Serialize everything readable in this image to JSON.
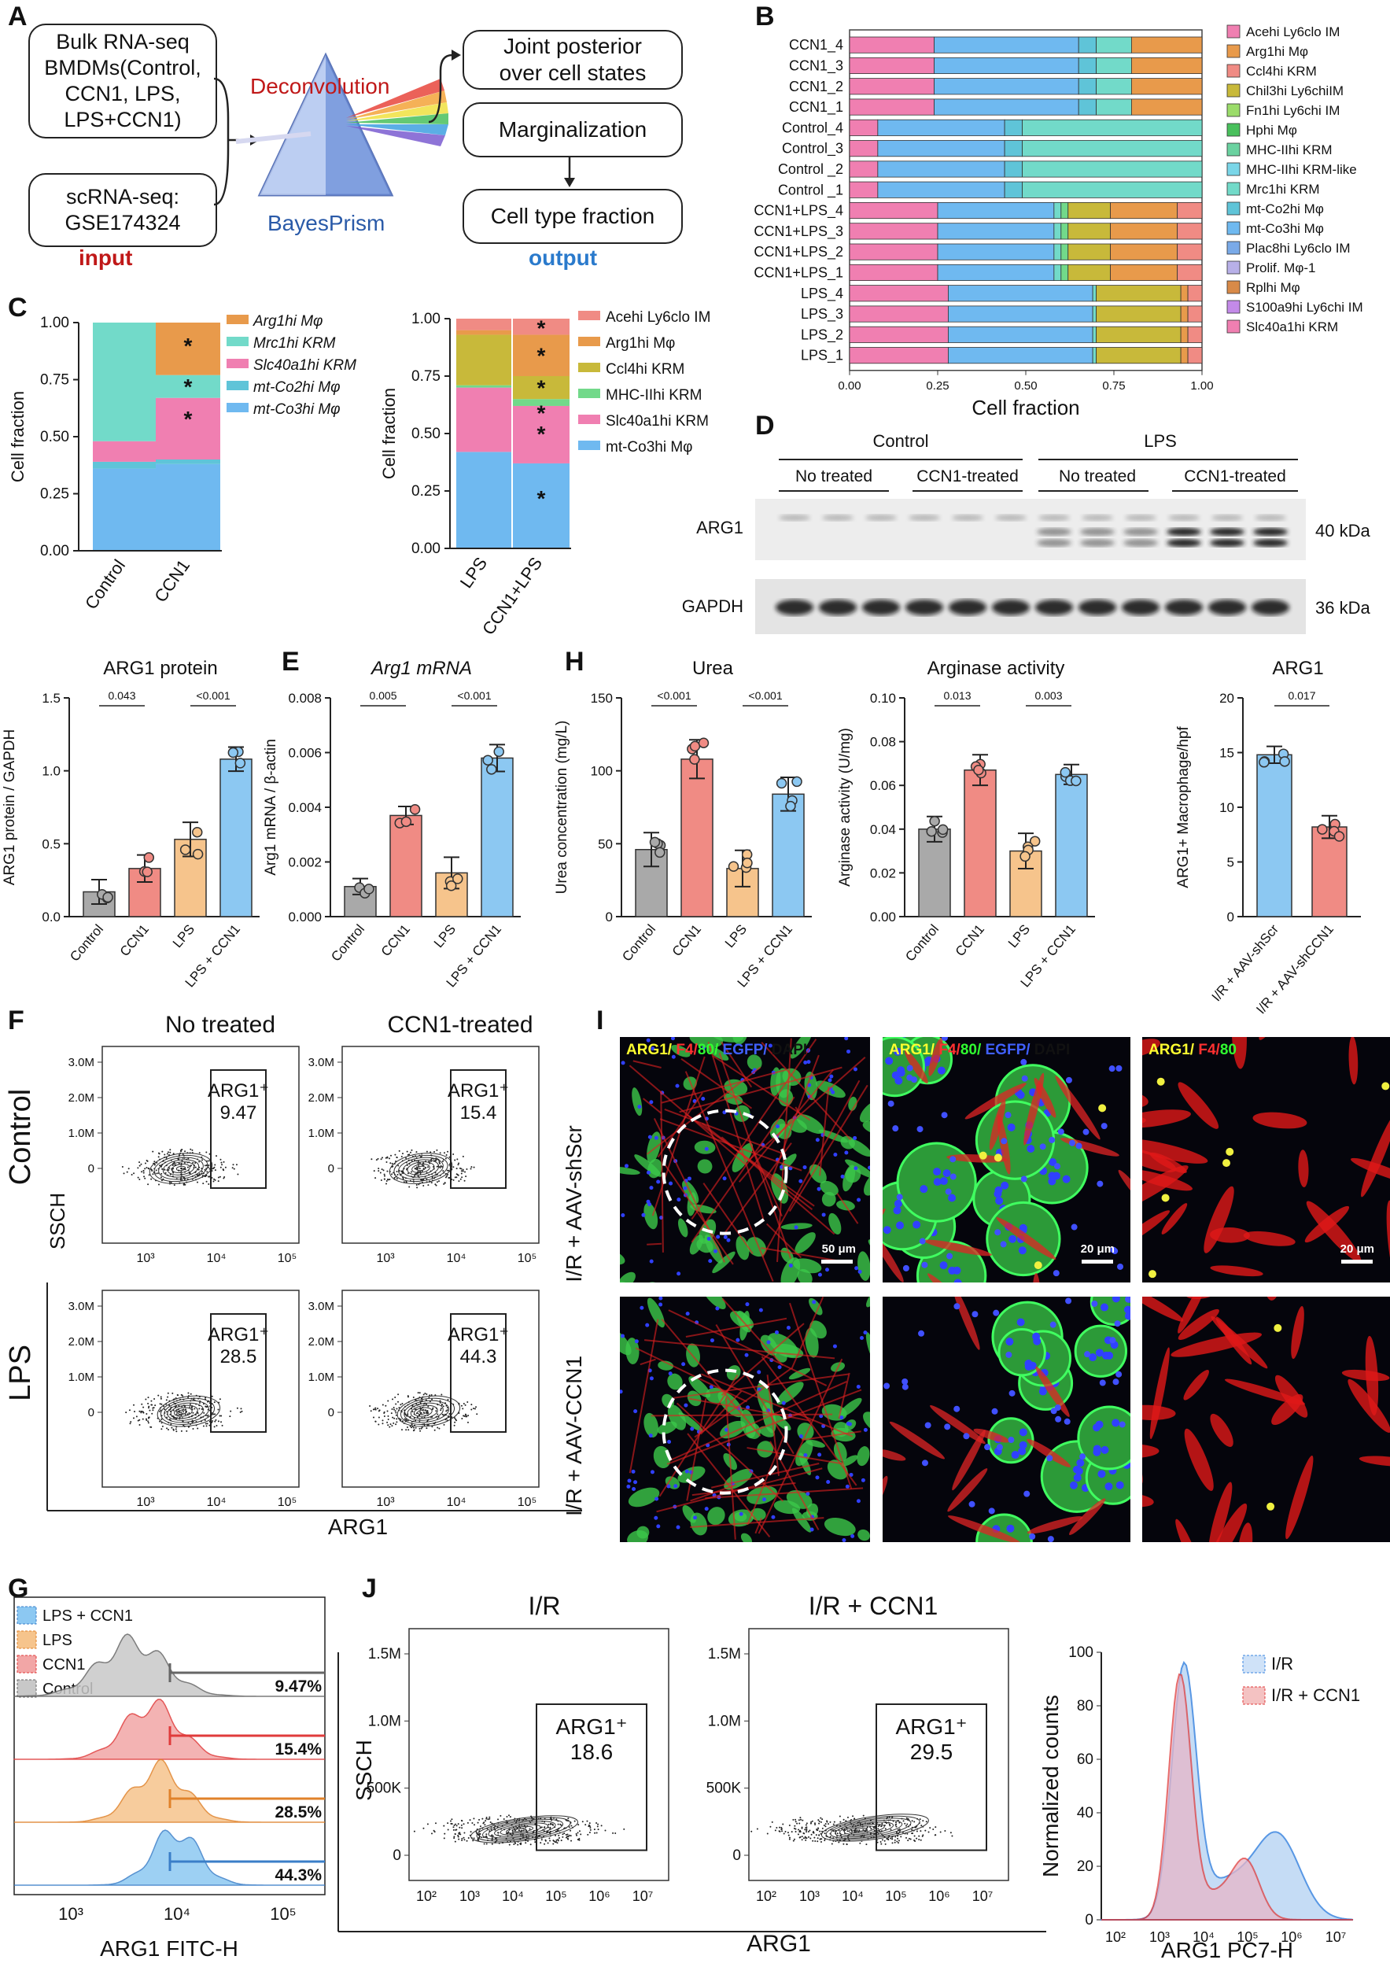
{
  "panels": {
    "A": "A",
    "B": "B",
    "C": "C",
    "D": "D",
    "E": "E",
    "F": "F",
    "G": "G",
    "H": "H",
    "I": "I",
    "J": "J"
  },
  "colors": {
    "red": "#f08b84",
    "pink": "#f07fb1",
    "orange": "#e89a4b",
    "blue": "#6fb9f0",
    "teal": "#72dac9",
    "green": "#72d98a",
    "olive": "#c8b93a",
    "grey": "#b3b3b3",
    "cyan": "#5fc4d8",
    "purple": "#7a6cd9",
    "lightgreen": "#9bdc6a"
  },
  "panelA": {
    "input_box1": "Bulk RNA-seq\nBMDMs(Control,\nCCN1, LPS,\nLPS+CCN1)",
    "input_box2": "scRNA-seq:\nGSE174324",
    "method": "Deconvolution",
    "tool": "BayesPrism",
    "output_box1": "Joint posterior\nover cell states",
    "output_box2": "Marginalization",
    "output_box3": "Cell type fraction",
    "input_label": "input",
    "output_label": "output"
  },
  "panelB": {
    "xlabel": "Cell fraction",
    "ticks": [
      "0.00",
      "0.25",
      "0.50",
      "0.75",
      "1.00"
    ],
    "samples": [
      "CCN1_4",
      "CCN1_3",
      "CCN1_2",
      "CCN1_1",
      "Control_4",
      "Control_3",
      "Control _2",
      "Control _1",
      "CCN1+LPS_4",
      "CCN1+LPS_3",
      "CCN1+LPS_2",
      "CCN1+LPS_1",
      "LPS_4",
      "LPS_3",
      "LPS_2",
      "LPS_1"
    ],
    "legend": [
      "Acehi Ly6clo IM",
      "Arg1hi Mφ",
      "Ccl4hi KRM",
      "Chil3hi Ly6chiIM",
      "Fn1hi Ly6chi IM",
      "Hphi Mφ",
      "MHC-IIhi KRM",
      "MHC-IIhi KRM-like",
      "Mrc1hi KRM",
      "mt-Co2hi Mφ",
      "mt-Co3hi Mφ",
      "Plac8hi Ly6clo IM",
      "Prolif. Mφ-1",
      "Rplhi Mφ",
      "S100a9hi Ly6chi IM",
      "Slc40a1hi KRM"
    ]
  },
  "panelC": {
    "ylabel": "Cell fraction",
    "ticks": [
      "0.00",
      "0.25",
      "0.50",
      "0.75",
      "1.00"
    ],
    "left": {
      "categories": [
        "Control",
        "CCN1"
      ],
      "legend": [
        "Arg1hi Mφ",
        "Mrc1hi KRM",
        "Slc40a1hi KRM",
        "mt-Co2hi Mφ",
        "mt-Co3hi Mφ"
      ]
    },
    "right": {
      "categories": [
        "LPS",
        "CCN1+LPS"
      ],
      "legend": [
        "Acehi Ly6clo IM",
        "Arg1hi Mφ",
        "Ccl4hi KRM",
        "MHC-IIhi KRM",
        "Slc40a1hi KRM",
        "mt-Co3hi Mφ"
      ]
    },
    "star": "*"
  },
  "panelD": {
    "group1": "Control",
    "group2": "LPS",
    "sub": [
      "No treated",
      "CCN1-treated",
      "No treated",
      "CCN1-treated"
    ],
    "row1": "ARG1",
    "row2": "GAPDH",
    "kda1": "40 kDa",
    "kda2": "36 kDa"
  },
  "chart_data": [
    {
      "type": "bar",
      "title": "ARG1 protein",
      "ylabel": "ARG1 protein / GAPDH",
      "categories": [
        "Control",
        "CCN1",
        "LPS",
        "LPS + CCN1"
      ],
      "values": [
        0.17,
        0.33,
        0.53,
        1.08
      ],
      "ylim": [
        0,
        1.5
      ],
      "yticks": [
        "0.0",
        "0.5",
        "1.0",
        "1.5"
      ],
      "pvalues": [
        "0.043",
        "<0.001"
      ]
    },
    {
      "type": "bar",
      "title": "Arg1 mRNA",
      "ylabel": "Arg1 mRNA / β-actin",
      "categories": [
        "Control",
        "CCN1",
        "LPS",
        "LPS + CCN1"
      ],
      "values": [
        0.0011,
        0.0037,
        0.0016,
        0.0058
      ],
      "ylim": [
        0,
        0.008
      ],
      "yticks": [
        "0.000",
        "0.002",
        "0.004",
        "0.006",
        "0.008"
      ],
      "pvalues": [
        "0.005",
        "<0.001"
      ]
    },
    {
      "type": "bar",
      "title": "Urea",
      "ylabel": "Urea concentration (mg/L)",
      "categories": [
        "Control",
        "CCN1",
        "LPS",
        "LPS + CCN1"
      ],
      "values": [
        46,
        108,
        33,
        84
      ],
      "ylim": [
        0,
        150
      ],
      "yticks": [
        "0",
        "50",
        "100",
        "150"
      ],
      "pvalues": [
        "<0.001",
        "<0.001"
      ]
    },
    {
      "type": "bar",
      "title": "Arginase activity",
      "ylabel": "Arginase activity (U/mg)",
      "categories": [
        "Control",
        "CCN1",
        "LPS",
        "LPS + CCN1"
      ],
      "values": [
        0.04,
        0.067,
        0.03,
        0.065
      ],
      "ylim": [
        0,
        0.1
      ],
      "yticks": [
        "0.00",
        "0.02",
        "0.04",
        "0.06",
        "0.08",
        "0.10"
      ],
      "pvalues": [
        "0.013",
        "0.003"
      ]
    },
    {
      "type": "bar",
      "title": "ARG1",
      "ylabel": "ARG1+ Macrophage/hpf",
      "categories": [
        "I/R + AAV-shScr",
        "I/R + AAV-shCCN1"
      ],
      "values": [
        14.8,
        8.2
      ],
      "ylim": [
        0,
        20
      ],
      "yticks": [
        "0",
        "5",
        "10",
        "15",
        "20"
      ],
      "pvalues": [
        "0.017"
      ]
    },
    {
      "type": "scatter",
      "title": "Flow F",
      "gates": [
        {
          "label": "ARG1+",
          "value": "9.47"
        },
        {
          "label": "ARG1+",
          "value": "15.4"
        },
        {
          "label": "ARG1+",
          "value": "28.5"
        },
        {
          "label": "ARG1+",
          "value": "44.3"
        }
      ]
    },
    {
      "type": "area",
      "title": "Flow G",
      "series": [
        {
          "name": "LPS + CCN1",
          "value": "44.3%"
        },
        {
          "name": "LPS",
          "value": "28.5%"
        },
        {
          "name": "CCN1",
          "value": "15.4%"
        },
        {
          "name": "Control",
          "value": "9.47%"
        }
      ]
    },
    {
      "type": "area",
      "title": "Flow J histogram",
      "series": [
        {
          "name": "I/R"
        },
        {
          "name": "I/R + CCN1"
        }
      ],
      "gates": [
        {
          "label": "ARG1+",
          "value": "18.6"
        },
        {
          "label": "ARG1+",
          "value": "29.5"
        }
      ]
    }
  ],
  "panelF": {
    "col1": "No treated",
    "col2": "CCN1-treated",
    "row1": "Control",
    "row2": "LPS",
    "yaxis": "SSCH",
    "xaxis": "ARG1",
    "yticks": [
      "0",
      "1.0M",
      "2.0M",
      "3.0M"
    ],
    "xticks": [
      "10³",
      "10⁴",
      "10⁵"
    ],
    "gate": "ARG1⁺",
    "values": [
      "9.47",
      "15.4",
      "28.5",
      "44.3"
    ]
  },
  "panelG": {
    "legend": [
      "LPS + CCN1",
      "LPS",
      "CCN1",
      "Control"
    ],
    "pct": [
      "9.47%",
      "15.4%",
      "28.5%",
      "44.3%"
    ],
    "xlabel": "ARG1 FITC-H",
    "xticks": [
      "10³",
      "10⁴",
      "10⁵"
    ]
  },
  "panelI": {
    "rows": [
      "I/R + AAV-shScr",
      "I/R + AAV-CCN1"
    ],
    "stain_full": "ARG1/ F4/80/ EGFP/ DAPI",
    "stain_short": "ARG1/ F4/80",
    "scale1": "50 μm",
    "scale2": "20 μm"
  },
  "panelJ": {
    "col1": "I/R",
    "col2": "I/R + CCN1",
    "yaxis": "SSCH",
    "xaxis": "ARG1",
    "yticks": [
      "0",
      "500K",
      "1.0M",
      "1.5M"
    ],
    "xticks": [
      "10²",
      "10³",
      "10⁴",
      "10⁵",
      "10⁶",
      "10⁷"
    ],
    "gate": "ARG1⁺",
    "values": [
      "18.6",
      "29.5"
    ],
    "hist_ylabel": "Normalized counts",
    "hist_xlabel": "ARG1 PC7-H",
    "hist_yticks": [
      "0",
      "20",
      "40",
      "60",
      "80",
      "100"
    ],
    "legend": [
      "I/R",
      "I/R + CCN1"
    ]
  }
}
